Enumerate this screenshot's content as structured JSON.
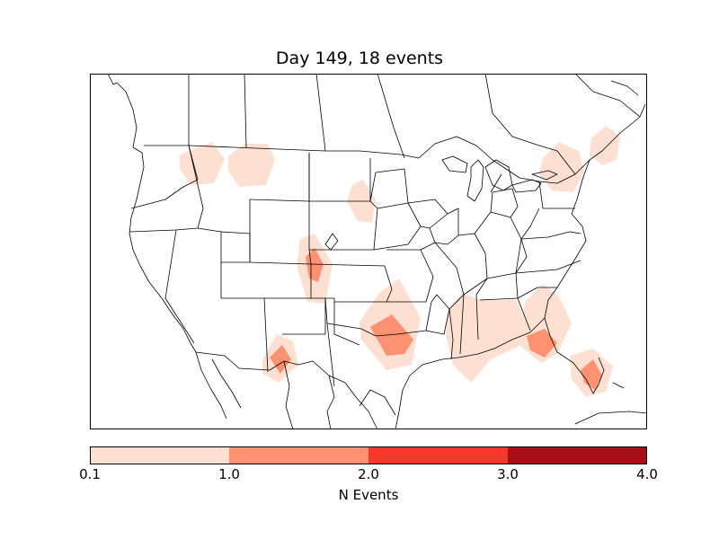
{
  "title": "Day 149, 18 events",
  "colorbar": {
    "label": "N Events",
    "ticks": [
      "0.1",
      "1.0",
      "2.0",
      "3.0",
      "4.0"
    ],
    "colors": [
      "#fde0d2",
      "#fc9272",
      "#ef3b2c",
      "#a50f15"
    ]
  },
  "map": {
    "border_color": "#000000",
    "background": "#ffffff"
  }
}
